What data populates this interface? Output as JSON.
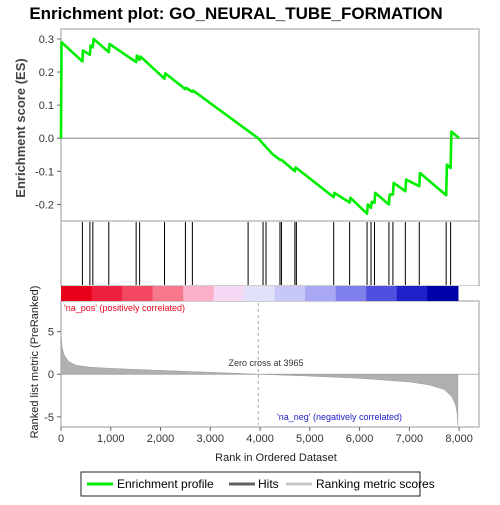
{
  "chart_data": {
    "type": "line",
    "title": "Enrichment plot: GO_NEURAL_TUBE_FORMATION",
    "panels": [
      {
        "id": "enrichment",
        "ylabel": "Enrichment score (ES)",
        "ylim": [
          -0.25,
          0.33
        ],
        "yticks": [
          -0.2,
          -0.1,
          0.0,
          0.1,
          0.2,
          0.3
        ],
        "ytick_labels": [
          "-0.2",
          "-0.1",
          "0.0",
          "0.1",
          "0.2",
          "0.3"
        ],
        "series": [
          {
            "name": "Enrichment profile",
            "color": "#00ee00",
            "x": [
              0,
              10,
              430,
              440,
              580,
              595,
              640,
              655,
              960,
              975,
              1510,
              1525,
              1580,
              1595,
              2080,
              2095,
              2500,
              2515,
              2640,
              2655,
              3960,
              4250,
              4400,
              4430,
              4700,
              4715,
              5480,
              5495,
              5800,
              5815,
              6150,
              6165,
              6230,
              6245,
              6300,
              6315,
              6590,
              6605,
              6670,
              6685,
              6920,
              6935,
              7200,
              7215,
              7740,
              7755,
              7830,
              7845,
              8000
            ],
            "y": [
              0.0,
              0.29,
              0.232,
              0.265,
              0.252,
              0.28,
              0.275,
              0.3,
              0.26,
              0.285,
              0.23,
              0.25,
              0.237,
              0.247,
              0.18,
              0.196,
              0.148,
              0.152,
              0.14,
              0.144,
              0.0,
              -0.048,
              -0.065,
              -0.065,
              -0.1,
              -0.088,
              -0.178,
              -0.165,
              -0.194,
              -0.18,
              -0.228,
              -0.2,
              -0.21,
              -0.192,
              -0.195,
              -0.165,
              -0.2,
              -0.17,
              -0.17,
              -0.135,
              -0.16,
              -0.125,
              -0.145,
              -0.105,
              -0.172,
              -0.08,
              -0.09,
              0.02,
              0.0
            ]
          }
        ]
      },
      {
        "id": "hits",
        "series_name": "Hits",
        "hits": [
          430,
          580,
          640,
          960,
          1510,
          1580,
          2080,
          2500,
          2640,
          3760,
          4060,
          4120,
          4400,
          4430,
          4700,
          4730,
          5480,
          5800,
          6150,
          6230,
          6300,
          6590,
          6670,
          6920,
          7200,
          7740,
          7830
        ]
      },
      {
        "id": "ranked_metric",
        "series_name": "Ranking metric scores",
        "ylabel": "Ranked list metric (PreRanked)",
        "xlabel": "Rank in Ordered Dataset",
        "xlim": [
          0,
          8400
        ],
        "xticks": [
          0,
          1000,
          2000,
          3000,
          4000,
          5000,
          6000,
          7000,
          8000
        ],
        "xtick_labels": [
          "0",
          "1,000",
          "2,000",
          "3,000",
          "4,000",
          "5,000",
          "6,000",
          "7,000",
          "8,000"
        ],
        "ylim": [
          -6.2,
          8.6
        ],
        "yticks": [
          -5,
          0,
          5
        ],
        "ytick_labels": [
          "-5",
          "0",
          "5"
        ],
        "profile": [
          [
            0,
            5.0
          ],
          [
            20,
            3.2
          ],
          [
            60,
            2.3
          ],
          [
            150,
            1.5
          ],
          [
            300,
            1.05
          ],
          [
            600,
            0.82
          ],
          [
            1000,
            0.68
          ],
          [
            2000,
            0.45
          ],
          [
            3000,
            0.22
          ],
          [
            3965,
            0.0
          ],
          [
            5000,
            -0.22
          ],
          [
            6000,
            -0.48
          ],
          [
            7000,
            -0.9
          ],
          [
            7400,
            -1.25
          ],
          [
            7700,
            -1.8
          ],
          [
            7850,
            -2.6
          ],
          [
            7930,
            -3.6
          ],
          [
            7960,
            -4.6
          ],
          [
            7975,
            -6.0
          ]
        ],
        "color": "#b0b0b0",
        "annotations": {
          "zero_cross": "Zero cross at 3965",
          "zero_cross_rank": 3965,
          "pos_label": "'na_pos' (positively correlated)",
          "neg_label": "'na_neg' (negatively correlated)"
        }
      }
    ],
    "color_bar": [
      "#e8001a",
      "#ef2040",
      "#f44862",
      "#f8788c",
      "#fbb0c8",
      "#f4d8f4",
      "#e0e0f8",
      "#c8c8f8",
      "#a8a8f4",
      "#8080ec",
      "#5050e0",
      "#2020c8",
      "#0000a8"
    ],
    "legend": {
      "placement": "bottom",
      "items": [
        {
          "label": "Enrichment profile",
          "color": "#00ee00"
        },
        {
          "label": "Hits",
          "color": "#606060"
        },
        {
          "label": "Ranking metric scores",
          "color": "#c8c8c8"
        }
      ]
    }
  }
}
